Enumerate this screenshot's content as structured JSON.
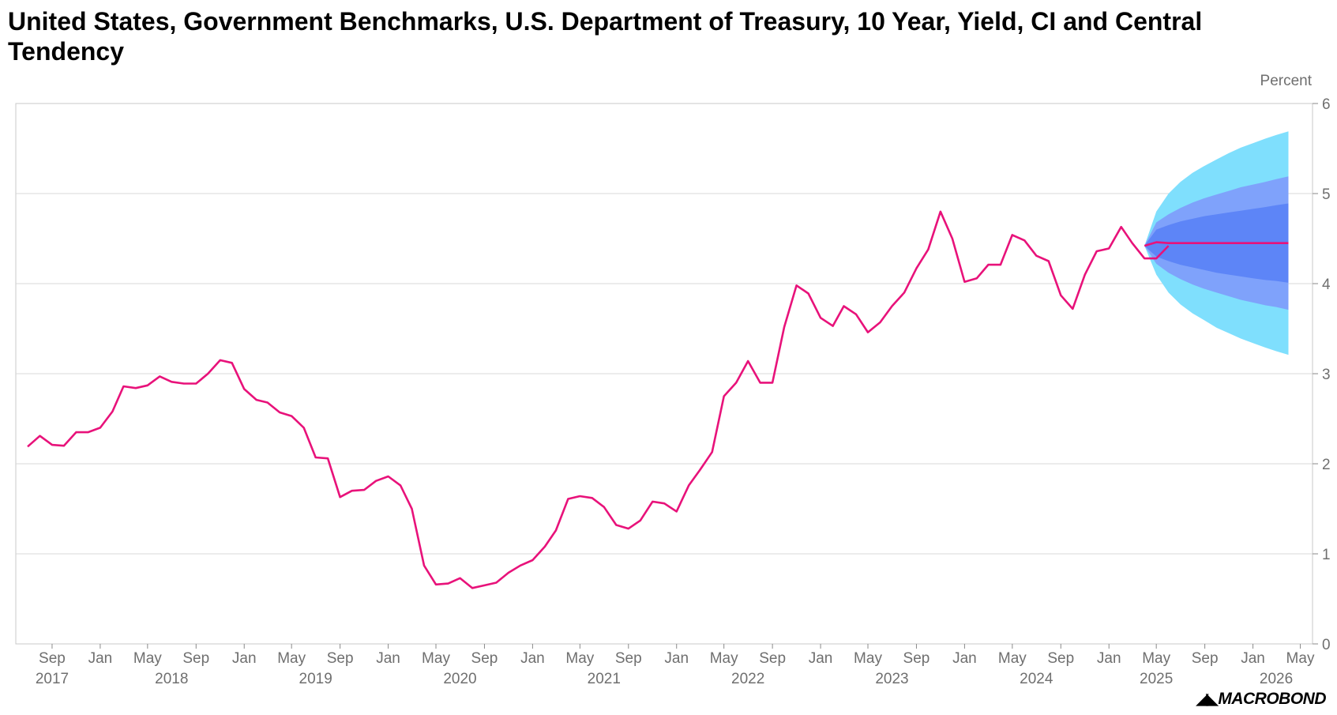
{
  "title": "United States, Government Benchmarks, U.S. Department of Treasury, 10 Year, Yield, CI and Central Tendency",
  "unit_label": "Percent",
  "logo_text": "MACROBOND",
  "colors": {
    "line": "#e8127a",
    "ci_outer": "#7fdffd",
    "ci_mid": "#7fa2fb",
    "ci_inner": "#5d85f7",
    "grid": "#d9d9d9",
    "axis_text": "#6f6f6f"
  },
  "chart_data": {
    "type": "line",
    "ylabel": "Percent",
    "ylim": [
      0,
      6
    ],
    "y_ticks": [
      "0",
      "1",
      "2",
      "3",
      "4",
      "5",
      "6"
    ],
    "grid": "horizontal",
    "x_range": [
      "2017-06-01",
      "2026-06-01"
    ],
    "x_month_ticks": [
      {
        "date": "2017-09",
        "label": "Sep"
      },
      {
        "date": "2018-01",
        "label": "Jan"
      },
      {
        "date": "2018-05",
        "label": "May"
      },
      {
        "date": "2018-09",
        "label": "Sep"
      },
      {
        "date": "2019-01",
        "label": "Jan"
      },
      {
        "date": "2019-05",
        "label": "May"
      },
      {
        "date": "2019-09",
        "label": "Sep"
      },
      {
        "date": "2020-01",
        "label": "Jan"
      },
      {
        "date": "2020-05",
        "label": "May"
      },
      {
        "date": "2020-09",
        "label": "Sep"
      },
      {
        "date": "2021-01",
        "label": "Jan"
      },
      {
        "date": "2021-05",
        "label": "May"
      },
      {
        "date": "2021-09",
        "label": "Sep"
      },
      {
        "date": "2022-01",
        "label": "Jan"
      },
      {
        "date": "2022-05",
        "label": "May"
      },
      {
        "date": "2022-09",
        "label": "Sep"
      },
      {
        "date": "2023-01",
        "label": "Jan"
      },
      {
        "date": "2023-05",
        "label": "May"
      },
      {
        "date": "2023-09",
        "label": "Sep"
      },
      {
        "date": "2024-01",
        "label": "Jan"
      },
      {
        "date": "2024-05",
        "label": "May"
      },
      {
        "date": "2024-09",
        "label": "Sep"
      },
      {
        "date": "2025-01",
        "label": "Jan"
      },
      {
        "date": "2025-05",
        "label": "May"
      },
      {
        "date": "2025-09",
        "label": "Sep"
      },
      {
        "date": "2026-01",
        "label": "Jan"
      },
      {
        "date": "2026-05",
        "label": "May"
      }
    ],
    "x_year_labels": [
      {
        "date": "2017-09",
        "label": "2017"
      },
      {
        "date": "2018-07",
        "label": "2018"
      },
      {
        "date": "2019-07",
        "label": "2019"
      },
      {
        "date": "2020-07",
        "label": "2020"
      },
      {
        "date": "2021-07",
        "label": "2021"
      },
      {
        "date": "2022-07",
        "label": "2022"
      },
      {
        "date": "2023-07",
        "label": "2023"
      },
      {
        "date": "2024-07",
        "label": "2024"
      },
      {
        "date": "2025-05",
        "label": "2025"
      },
      {
        "date": "2026-03",
        "label": "2026"
      }
    ],
    "series": [
      {
        "name": "10 Year Yield",
        "start": "2017-07",
        "freq": "monthly",
        "values": [
          2.19,
          2.31,
          2.21,
          2.2,
          2.35,
          2.35,
          2.4,
          2.58,
          2.86,
          2.84,
          2.87,
          2.97,
          2.91,
          2.89,
          2.89,
          3.0,
          3.15,
          3.12,
          2.83,
          2.71,
          2.68,
          2.57,
          2.53,
          2.4,
          2.07,
          2.06,
          1.63,
          1.7,
          1.71,
          1.81,
          1.86,
          1.76,
          1.5,
          0.87,
          0.66,
          0.67,
          0.73,
          0.62,
          0.65,
          0.68,
          0.79,
          0.87,
          0.93,
          1.08,
          1.26,
          1.61,
          1.64,
          1.62,
          1.52,
          1.32,
          1.28,
          1.37,
          1.58,
          1.56,
          1.47,
          1.76,
          1.93,
          2.13,
          2.75,
          2.9,
          3.14,
          2.9,
          2.9,
          3.52,
          3.98,
          3.89,
          3.62,
          3.53,
          3.75,
          3.66,
          3.46,
          3.57,
          3.75,
          3.9,
          4.17,
          4.38,
          4.8,
          4.5,
          4.02,
          4.06,
          4.21,
          4.21,
          4.54,
          4.48,
          4.31,
          4.25,
          3.87,
          3.72,
          4.1,
          4.36,
          4.39,
          4.63,
          4.45,
          4.28,
          4.28,
          4.42
        ]
      },
      {
        "name": "Central Tendency",
        "start": "2025-04",
        "freq": "monthly",
        "values": [
          4.42,
          4.46,
          4.45,
          4.45,
          4.45,
          4.45,
          4.45,
          4.45,
          4.45,
          4.45,
          4.45,
          4.45,
          4.45
        ]
      }
    ],
    "confidence_bands": {
      "start": "2025-04",
      "freq": "monthly",
      "outer_upper": [
        4.42,
        4.8,
        5.0,
        5.13,
        5.23,
        5.31,
        5.38,
        5.45,
        5.51,
        5.56,
        5.61,
        5.65,
        5.69
      ],
      "outer_lower": [
        4.42,
        4.1,
        3.9,
        3.77,
        3.67,
        3.59,
        3.51,
        3.45,
        3.39,
        3.34,
        3.29,
        3.25,
        3.21
      ],
      "mid_upper": [
        4.42,
        4.68,
        4.77,
        4.84,
        4.9,
        4.95,
        4.99,
        5.03,
        5.07,
        5.1,
        5.13,
        5.16,
        5.19
      ],
      "mid_lower": [
        4.42,
        4.22,
        4.12,
        4.05,
        3.99,
        3.94,
        3.9,
        3.86,
        3.82,
        3.79,
        3.76,
        3.74,
        3.71
      ],
      "inner_upper": [
        4.42,
        4.6,
        4.65,
        4.69,
        4.72,
        4.75,
        4.77,
        4.79,
        4.81,
        4.83,
        4.85,
        4.87,
        4.89
      ],
      "inner_lower": [
        4.42,
        4.3,
        4.25,
        4.21,
        4.18,
        4.15,
        4.12,
        4.1,
        4.08,
        4.06,
        4.04,
        4.03,
        4.01
      ]
    }
  }
}
